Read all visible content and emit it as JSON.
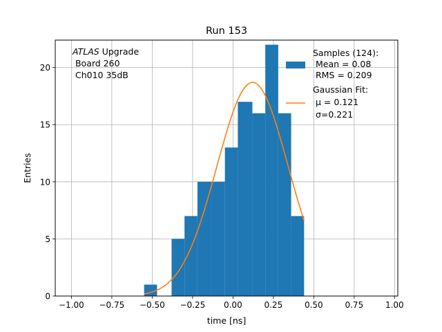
{
  "chart_data": {
    "type": "bar",
    "title": "Run 153",
    "xlabel": "time [ns]",
    "ylabel": "Entries",
    "xlim": [
      -1.1,
      1.02
    ],
    "ylim": [
      0,
      22.4
    ],
    "grid": true,
    "xticks": [
      -1.0,
      -0.75,
      -0.5,
      -0.25,
      0.0,
      0.25,
      0.5,
      0.75,
      1.0
    ],
    "xtick_labels": [
      "−1.00",
      "−0.75",
      "−0.50",
      "−0.25",
      "0.00",
      "0.25",
      "0.50",
      "0.75",
      "1.00"
    ],
    "yticks": [
      0,
      5,
      10,
      15,
      20
    ],
    "ytick_labels": [
      "0",
      "5",
      "10",
      "15",
      "20"
    ],
    "annotation": {
      "italic": "ATLAS",
      "line1_rest": " Upgrade",
      "line2": " Board 260",
      "line3": " Ch010 35dB"
    },
    "histogram": {
      "color": "#1f77b4",
      "bins": [
        {
          "x0": -0.55,
          "x1": -0.47,
          "count": 1
        },
        {
          "x0": -0.47,
          "x1": -0.38,
          "count": 0
        },
        {
          "x0": -0.38,
          "x1": -0.3,
          "count": 5
        },
        {
          "x0": -0.3,
          "x1": -0.22,
          "count": 7
        },
        {
          "x0": -0.22,
          "x1": -0.13,
          "count": 10
        },
        {
          "x0": -0.13,
          "x1": -0.05,
          "count": 10
        },
        {
          "x0": -0.05,
          "x1": 0.03,
          "count": 13
        },
        {
          "x0": 0.03,
          "x1": 0.12,
          "count": 17
        },
        {
          "x0": 0.12,
          "x1": 0.2,
          "count": 16
        },
        {
          "x0": 0.2,
          "x1": 0.28,
          "count": 22
        },
        {
          "x0": 0.28,
          "x1": 0.36,
          "count": 16
        },
        {
          "x0": 0.36,
          "x1": 0.44,
          "count": 7
        }
      ]
    },
    "fit": {
      "color": "#ff7f0e",
      "amplitude": 18.7,
      "mu": 0.121,
      "sigma": 0.221,
      "x_range": [
        -0.55,
        0.44
      ]
    },
    "legend": {
      "placement": "top-right",
      "samples_label": [
        "Samples (124):",
        " Mean = 0.08",
        " RMS = 0.209"
      ],
      "fit_label": [
        "Gaussian Fit:",
        " μ = 0.121",
        " σ=0.221"
      ]
    }
  }
}
